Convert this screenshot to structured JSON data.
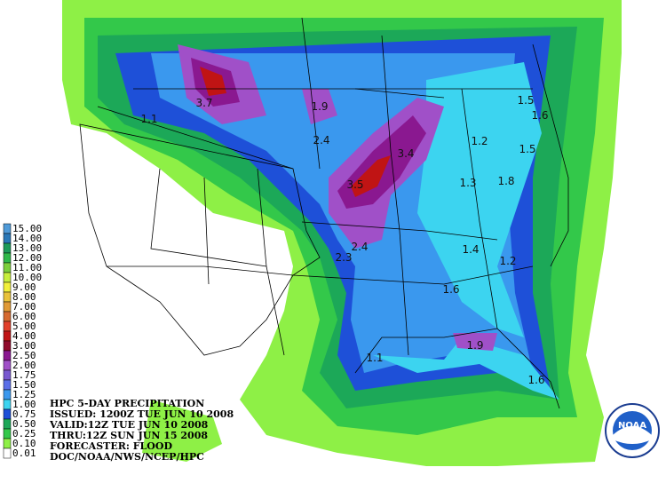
{
  "legend": {
    "items": [
      {
        "label": "15.00",
        "color": "#4f9ad8"
      },
      {
        "label": "14.00",
        "color": "#2a78b8"
      },
      {
        "label": "13.00",
        "color": "#1d9a5a"
      },
      {
        "label": "12.00",
        "color": "#2fb84a"
      },
      {
        "label": "11.00",
        "color": "#7ccf3c"
      },
      {
        "label": "10.00",
        "color": "#c8ee3c"
      },
      {
        "label": "9.00",
        "color": "#f2f03a"
      },
      {
        "label": "8.00",
        "color": "#e9c23a"
      },
      {
        "label": "7.00",
        "color": "#e09a36"
      },
      {
        "label": "6.00",
        "color": "#d66a30"
      },
      {
        "label": "5.00",
        "color": "#e2402a"
      },
      {
        "label": "4.00",
        "color": "#c01414"
      },
      {
        "label": "3.00",
        "color": "#900a2a"
      },
      {
        "label": "2.50",
        "color": "#8a1890"
      },
      {
        "label": "2.00",
        "color": "#a050c8"
      },
      {
        "label": "1.75",
        "color": "#7858d0"
      },
      {
        "label": "1.50",
        "color": "#5a6ee8"
      },
      {
        "label": "1.25",
        "color": "#3a98ee"
      },
      {
        "label": "1.00",
        "color": "#3cd4f0"
      },
      {
        "label": "0.75",
        "color": "#1e50d8"
      },
      {
        "label": "0.50",
        "color": "#1ca858"
      },
      {
        "label": "0.25",
        "color": "#33c84a"
      },
      {
        "label": "0.10",
        "color": "#8ef046"
      },
      {
        "label": "0.01",
        "color": "#ffffff"
      }
    ]
  },
  "info": {
    "lines": [
      "HPC 5-DAY PRECIPITATION",
      "ISSUED: 1200Z TUE JUN 10 2008",
      "VALID:12Z TUE JUN 10 2008",
      "THRU:12Z SUN JUN 15 2008",
      "FORECASTER: FLOOD",
      "DOC/NOAA/NWS/NCEP/HPC"
    ]
  },
  "points": [
    "3.7",
    "1.1",
    "1.9",
    "2.4",
    "3.4",
    "3.5",
    "2.4",
    "2.3",
    "1.5",
    "1.6",
    "1.5",
    "1.2",
    "1.3",
    "1.8",
    "1.4",
    "1.2",
    "1.6",
    "1.1",
    "1.9",
    "1.6"
  ],
  "logo": "NOAA"
}
